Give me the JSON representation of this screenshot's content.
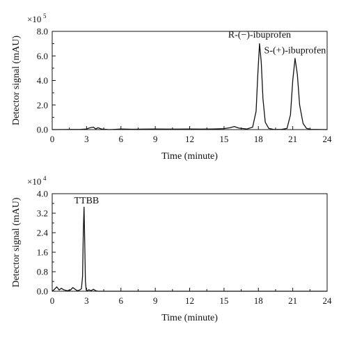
{
  "chart_data": [
    {
      "type": "line",
      "xlabel": "Time (minute)",
      "ylabel": "Detector signal (mAU)",
      "multiplier_base": "×10",
      "multiplier_exp": "5",
      "xlim": [
        0,
        24
      ],
      "ylim": [
        0,
        8.0
      ],
      "x_ticks": [
        "0",
        "3",
        "6",
        "9",
        "12",
        "15",
        "18",
        "21",
        "24"
      ],
      "y_ticks": [
        "0.0",
        "2.0",
        "4.0",
        "6.0",
        "8.0"
      ],
      "annotations": [
        {
          "text": "R-(−)-ibuprofen",
          "x": 18.1,
          "y": 7.5
        },
        {
          "text": "S-(+)-ibuprofen",
          "x": 21.2,
          "y": 6.2
        }
      ],
      "series": [
        {
          "x": [
            0,
            2.5,
            3.0,
            3.3,
            3.6,
            3.8,
            4.0,
            4.3,
            5.0,
            5.5,
            6.0,
            7.0,
            8.0,
            9.0,
            10.0,
            11.0,
            12.0,
            13.0,
            14.0,
            15.0,
            15.5,
            15.9,
            16.3,
            17.0,
            17.5,
            17.8,
            17.95,
            18.1,
            18.25,
            18.4,
            18.6,
            18.9,
            19.3,
            20.0,
            20.5,
            20.8,
            21.0,
            21.2,
            21.4,
            21.6,
            21.9,
            22.2,
            22.6,
            24.0
          ],
          "y": [
            0,
            0.02,
            0.05,
            0.15,
            0.2,
            0.05,
            0.15,
            0.05,
            0.0,
            0.02,
            0.05,
            0.03,
            0.04,
            0.05,
            0.04,
            0.04,
            0.05,
            0.04,
            0.05,
            0.08,
            0.15,
            0.25,
            0.12,
            0.05,
            0.2,
            1.5,
            4.5,
            7.0,
            5.5,
            2.5,
            0.6,
            0.1,
            0.02,
            0.01,
            0.1,
            1.2,
            4.0,
            5.8,
            4.5,
            2.0,
            0.5,
            0.1,
            0.02,
            0
          ]
        }
      ]
    },
    {
      "type": "line",
      "xlabel": "Time (minute)",
      "ylabel": "Detector signal (mAU)",
      "multiplier_base": "×10",
      "multiplier_exp": "4",
      "xlim": [
        0,
        24
      ],
      "ylim": [
        0,
        4.0
      ],
      "x_ticks": [
        "0",
        "3",
        "6",
        "9",
        "12",
        "15",
        "18",
        "21",
        "24"
      ],
      "y_ticks": [
        "0.0",
        "0.8",
        "1.6",
        "2.4",
        "3.2",
        "4.0"
      ],
      "annotations": [
        {
          "text": "TTBB",
          "x": 3.0,
          "y": 3.6
        }
      ],
      "series": [
        {
          "x": [
            0,
            0.2,
            0.4,
            0.6,
            0.8,
            1.0,
            1.3,
            1.6,
            1.8,
            2.0,
            2.2,
            2.4,
            2.55,
            2.65,
            2.72,
            2.78,
            2.84,
            2.9,
            2.97,
            3.05,
            3.2,
            3.4,
            3.6,
            3.8,
            4.0,
            4.5,
            6.0,
            9.0,
            12.0,
            15.0,
            18.0,
            21.0,
            24.0
          ],
          "y": [
            0,
            0.08,
            0.18,
            0.05,
            0.12,
            0.06,
            0.02,
            0.05,
            0.15,
            0.08,
            0.02,
            0.05,
            0.1,
            0.6,
            2.5,
            3.45,
            2.0,
            0.4,
            0.05,
            0.02,
            0.06,
            0.02,
            0.08,
            0.02,
            0.0,
            0.0,
            0.0,
            0.0,
            0.0,
            0.0,
            0.0,
            0.0,
            0.0
          ]
        }
      ]
    }
  ]
}
